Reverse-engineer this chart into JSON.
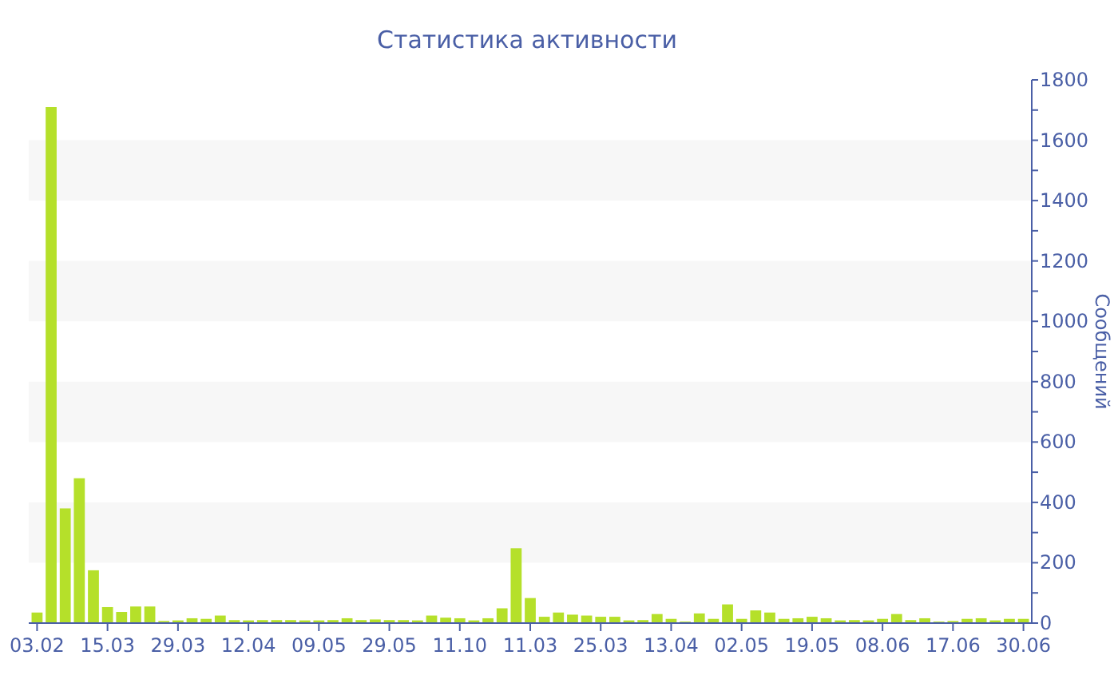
{
  "chart_data": {
    "type": "bar",
    "title": "Статистика активности",
    "ylabel": "Сообщений",
    "categories": [
      "03.02",
      null,
      null,
      null,
      null,
      "15.03",
      null,
      null,
      null,
      null,
      "29.03",
      null,
      null,
      null,
      null,
      "12.04",
      null,
      null,
      null,
      null,
      "09.05",
      null,
      null,
      null,
      null,
      "29.05",
      null,
      null,
      null,
      null,
      "11.10",
      null,
      null,
      null,
      null,
      "11.03",
      null,
      null,
      null,
      null,
      "25.03",
      null,
      null,
      null,
      null,
      "13.04",
      null,
      null,
      null,
      null,
      "02.05",
      null,
      null,
      null,
      null,
      "19.05",
      null,
      null,
      null,
      null,
      "08.06",
      null,
      null,
      null,
      null,
      "17.06",
      null,
      null,
      null,
      null,
      "30.06"
    ],
    "values": [
      35,
      1710,
      380,
      480,
      175,
      53,
      37,
      55,
      55,
      7,
      9,
      16,
      14,
      25,
      10,
      9,
      10,
      10,
      10,
      9,
      9,
      10,
      16,
      10,
      12,
      10,
      10,
      9,
      25,
      18,
      16,
      9,
      16,
      49,
      248,
      83,
      21,
      35,
      28,
      25,
      21,
      21,
      9,
      10,
      30,
      14,
      5,
      32,
      14,
      62,
      14,
      42,
      35,
      14,
      16,
      21,
      16,
      9,
      10,
      9,
      14,
      30,
      10,
      16,
      5,
      7,
      14,
      16,
      9,
      14,
      14
    ],
    "color": "#b5e02a",
    "ylim": [
      0,
      1800
    ],
    "yticks": [
      0,
      {
        "value": 100,
        "label": null
      },
      200,
      {
        "value": 300,
        "label": null
      },
      400,
      {
        "value": 500,
        "label": null
      },
      600,
      {
        "value": 700,
        "label": null
      },
      800,
      {
        "value": 900,
        "label": null
      },
      1000,
      {
        "value": 1100,
        "label": null
      },
      1200,
      {
        "value": 1300,
        "label": null
      },
      1400,
      {
        "value": 1500,
        "label": null
      },
      1600,
      {
        "value": 1700,
        "label": null
      },
      1800
    ],
    "bands": [
      {
        "axis": "y",
        "from": 200,
        "to": 400,
        "color": "#f7f7f7"
      },
      {
        "axis": "y",
        "from": 600,
        "to": 800,
        "color": "#f7f7f7"
      },
      {
        "axis": "y",
        "from": 1000,
        "to": 1200,
        "color": "#f7f7f7"
      },
      {
        "axis": "y",
        "from": 1400,
        "to": 1600,
        "color": "#f7f7f7"
      }
    ],
    "grid": false
  }
}
